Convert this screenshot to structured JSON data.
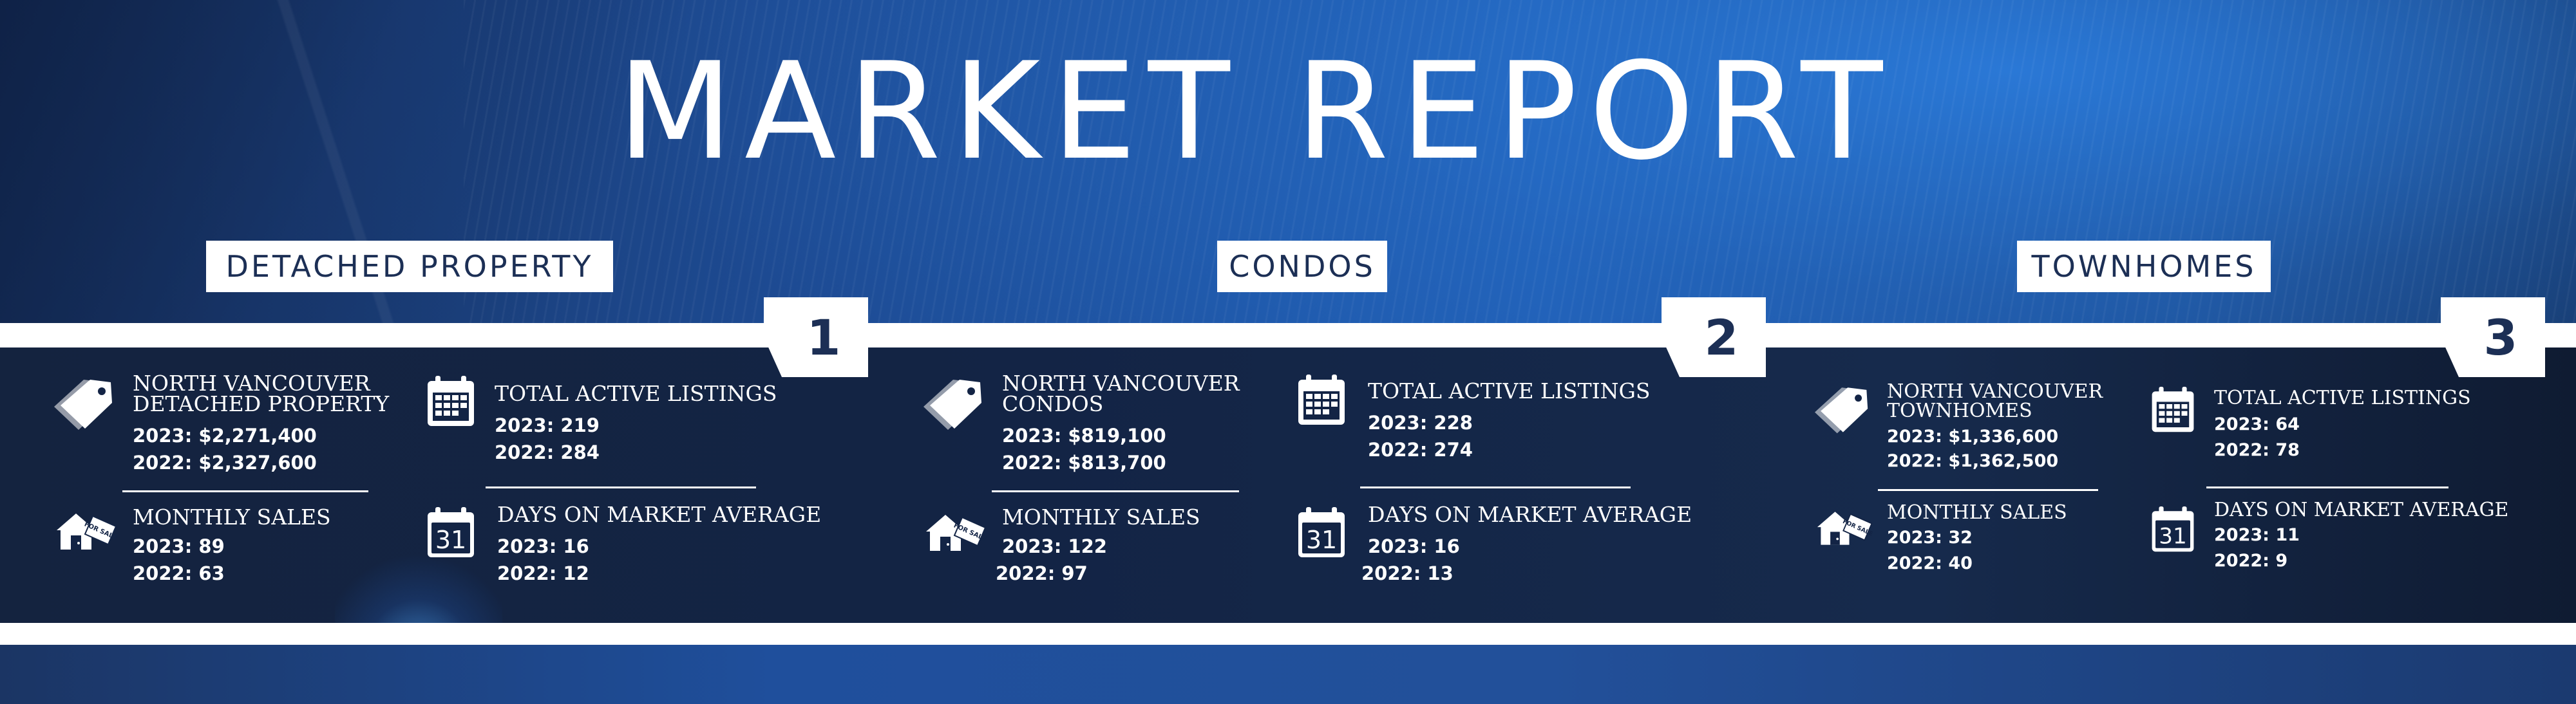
{
  "title": "MARKET REPORT",
  "sections": [
    {
      "label": "DETACHED PROPERTY",
      "number": "1",
      "price_heading": "NORTH VANCOUVER DETACHED PROPERTY",
      "price_2023": "2023: $2,271,400",
      "price_2022": "2022: $2,327,600",
      "listings_heading": "TOTAL ACTIVE LISTINGS",
      "listings_2023": "2023: 219",
      "listings_2022": "2022: 284",
      "sales_heading": "MONTHLY SALES",
      "sales_2023": "2023: 89",
      "sales_2022": "2022: 63",
      "dom_heading": "DAYS ON MARKET AVERAGE",
      "dom_2023": "2023: 16",
      "dom_2022": "2022: 12"
    },
    {
      "label": "CONDOS",
      "number": "2",
      "price_heading": "NORTH VANCOUVER CONDOS",
      "price_2023": "2023: $819,100",
      "price_2022": "2022: $813,700",
      "listings_heading": "TOTAL ACTIVE LISTINGS",
      "listings_2023": "2023: 228",
      "listings_2022": "2022: 274",
      "sales_heading": "MONTHLY SALES",
      "sales_2023": "2023: 122",
      "sales_2022": "2022: 97",
      "dom_heading": "DAYS ON MARKET AVERAGE",
      "dom_2023": "2023: 16",
      "dom_2022": "2022: 13"
    },
    {
      "label": "TOWNHOMES",
      "number": "3",
      "price_heading": "NORTH VANCOUVER TOWNHOMES",
      "price_2023": "2023: $1,336,600",
      "price_2022": "2022: $1,362,500",
      "listings_heading": "TOTAL ACTIVE LISTINGS",
      "listings_2023": "2023: 64",
      "listings_2022": "2022: 78",
      "sales_heading": "MONTHLY SALES",
      "sales_2023": "2023: 32",
      "sales_2022": "2022: 40",
      "dom_heading": "DAYS ON MARKET AVERAGE",
      "dom_2023": "2023: 11",
      "dom_2022": "2022: 9"
    }
  ],
  "icons": {
    "price": "price-tag-icon",
    "listings": "calendar-icon",
    "sales": "house-for-sale-icon",
    "dom": "calendar-31-icon",
    "calendar_day": "31",
    "sale_tag": "FOR SALE"
  },
  "colors": {
    "navy_text": "#1c2f55",
    "panel": "#132445",
    "accent_blue": "#1f5bb0",
    "white": "#ffffff"
  }
}
